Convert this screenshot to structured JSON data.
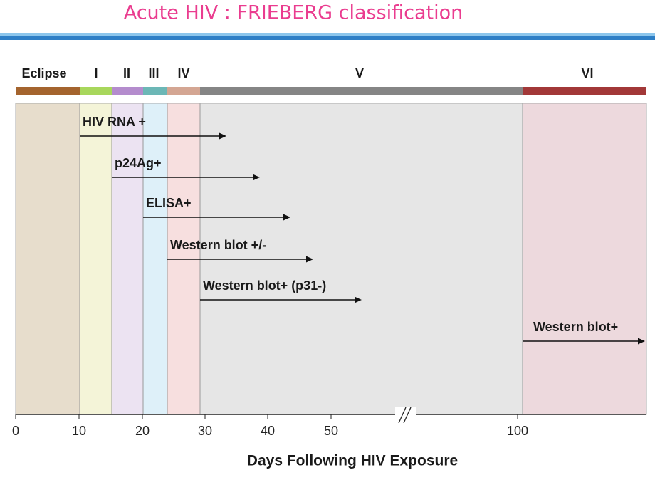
{
  "header": {
    "title": "Acute HIV :  FRIEBERG classification"
  },
  "stages": [
    "Eclipse",
    "I",
    "II",
    "III",
    "IV",
    "V",
    "VI"
  ],
  "markers": [
    "HIV RNA +",
    "p24Ag+",
    "ELISA+",
    "Western blot +/-",
    "Western blot+ (p31-)",
    "Western blot+"
  ],
  "axis": {
    "ticks": [
      0,
      10,
      20,
      30,
      40,
      50,
      100
    ],
    "label": "Days Following HIV Exposure"
  }
}
